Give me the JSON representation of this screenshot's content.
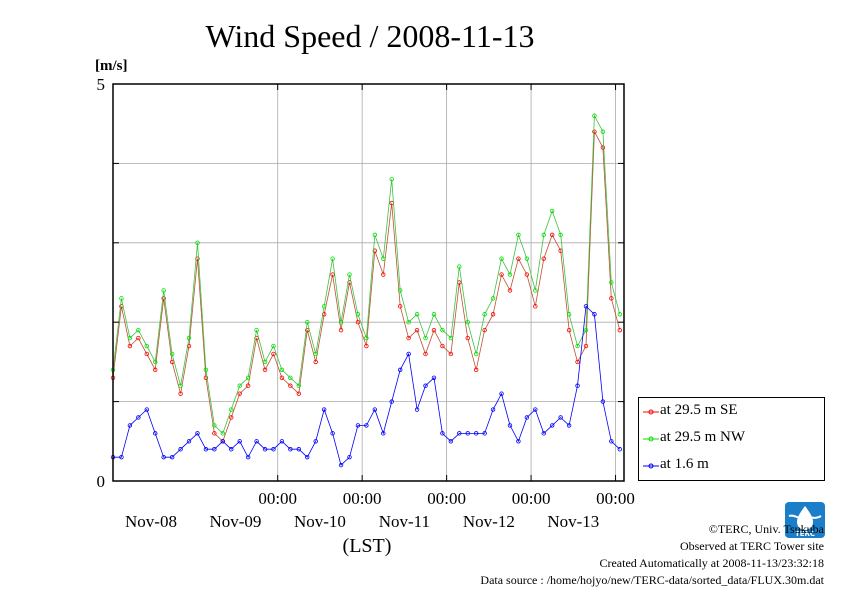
{
  "chart_data": {
    "type": "line",
    "title": "Wind Speed / 2008-11-13",
    "ylabel": "[m/s]",
    "xlabel": "(LST)",
    "ylim": [
      0,
      5
    ],
    "y_ticks": [
      "0",
      "5"
    ],
    "x_tick_time": "00:00",
    "x_date_labels": [
      "Nov-08",
      "Nov-09",
      "Nov-10",
      "Nov-11",
      "Nov-12",
      "Nov-13"
    ],
    "x_range_days": [
      -0.95,
      5.1
    ],
    "grid": true,
    "legend_position": "right",
    "series": [
      {
        "name": "at 29.5 m SE",
        "color": "#ff0000",
        "x": [
          -0.95,
          -0.85,
          -0.75,
          -0.65,
          -0.55,
          -0.45,
          -0.35,
          -0.25,
          -0.15,
          -0.05,
          0.05,
          0.15,
          0.25,
          0.35,
          0.45,
          0.55,
          0.65,
          0.75,
          0.85,
          0.95,
          1.05,
          1.15,
          1.25,
          1.35,
          1.45,
          1.55,
          1.65,
          1.75,
          1.85,
          1.95,
          2.05,
          2.15,
          2.25,
          2.35,
          2.45,
          2.55,
          2.65,
          2.75,
          2.85,
          2.95,
          3.05,
          3.15,
          3.25,
          3.35,
          3.45,
          3.55,
          3.65,
          3.75,
          3.85,
          3.95,
          4.05,
          4.15,
          4.25,
          4.35,
          4.45,
          4.55,
          4.65,
          4.75,
          4.85,
          4.95,
          5.05
        ],
        "values": [
          1.3,
          2.2,
          1.7,
          1.8,
          1.6,
          1.4,
          2.3,
          1.5,
          1.1,
          1.7,
          2.8,
          1.3,
          0.6,
          0.5,
          0.8,
          1.1,
          1.2,
          1.8,
          1.4,
          1.6,
          1.3,
          1.2,
          1.1,
          1.9,
          1.5,
          2.1,
          2.6,
          1.9,
          2.5,
          2.0,
          1.7,
          2.9,
          2.6,
          3.5,
          2.2,
          1.8,
          1.9,
          1.6,
          1.9,
          1.7,
          1.6,
          2.5,
          1.8,
          1.4,
          1.9,
          2.1,
          2.6,
          2.4,
          2.8,
          2.6,
          2.2,
          2.8,
          3.1,
          2.9,
          1.9,
          1.5,
          1.7,
          4.4,
          4.2,
          2.3,
          1.9
        ]
      },
      {
        "name": "at 29.5 m NW",
        "color": "#00e000",
        "x": [
          -0.95,
          -0.85,
          -0.75,
          -0.65,
          -0.55,
          -0.45,
          -0.35,
          -0.25,
          -0.15,
          -0.05,
          0.05,
          0.15,
          0.25,
          0.35,
          0.45,
          0.55,
          0.65,
          0.75,
          0.85,
          0.95,
          1.05,
          1.15,
          1.25,
          1.35,
          1.45,
          1.55,
          1.65,
          1.75,
          1.85,
          1.95,
          2.05,
          2.15,
          2.25,
          2.35,
          2.45,
          2.55,
          2.65,
          2.75,
          2.85,
          2.95,
          3.05,
          3.15,
          3.25,
          3.35,
          3.45,
          3.55,
          3.65,
          3.75,
          3.85,
          3.95,
          4.05,
          4.15,
          4.25,
          4.35,
          4.45,
          4.55,
          4.65,
          4.75,
          4.85,
          4.95,
          5.05
        ],
        "values": [
          1.4,
          2.3,
          1.8,
          1.9,
          1.7,
          1.5,
          2.4,
          1.6,
          1.2,
          1.8,
          3.0,
          1.4,
          0.7,
          0.6,
          0.9,
          1.2,
          1.3,
          1.9,
          1.5,
          1.7,
          1.4,
          1.3,
          1.2,
          2.0,
          1.6,
          2.2,
          2.8,
          2.0,
          2.6,
          2.1,
          1.8,
          3.1,
          2.8,
          3.8,
          2.4,
          2.0,
          2.1,
          1.8,
          2.1,
          1.9,
          1.8,
          2.7,
          2.0,
          1.6,
          2.1,
          2.3,
          2.8,
          2.6,
          3.1,
          2.8,
          2.4,
          3.1,
          3.4,
          3.1,
          2.1,
          1.7,
          1.9,
          4.6,
          4.4,
          2.5,
          2.1
        ]
      },
      {
        "name": "at 1.6 m",
        "color": "#0000ff",
        "x": [
          -0.95,
          -0.85,
          -0.75,
          -0.65,
          -0.55,
          -0.45,
          -0.35,
          -0.25,
          -0.15,
          -0.05,
          0.05,
          0.15,
          0.25,
          0.35,
          0.45,
          0.55,
          0.65,
          0.75,
          0.85,
          0.95,
          1.05,
          1.15,
          1.25,
          1.35,
          1.45,
          1.55,
          1.65,
          1.75,
          1.85,
          1.95,
          2.05,
          2.15,
          2.25,
          2.35,
          2.45,
          2.55,
          2.65,
          2.75,
          2.85,
          2.95,
          3.05,
          3.15,
          3.25,
          3.35,
          3.45,
          3.55,
          3.65,
          3.75,
          3.85,
          3.95,
          4.05,
          4.15,
          4.25,
          4.35,
          4.45,
          4.55,
          4.65,
          4.75,
          4.85,
          4.95,
          5.05
        ],
        "values": [
          0.3,
          0.3,
          0.7,
          0.8,
          0.9,
          0.6,
          0.3,
          0.3,
          0.4,
          0.5,
          0.6,
          0.4,
          0.4,
          0.5,
          0.4,
          0.5,
          0.3,
          0.5,
          0.4,
          0.4,
          0.5,
          0.4,
          0.4,
          0.3,
          0.5,
          0.9,
          0.6,
          0.2,
          0.3,
          0.7,
          0.7,
          0.9,
          0.6,
          1.0,
          1.4,
          1.6,
          0.9,
          1.2,
          1.3,
          0.6,
          0.5,
          0.6,
          0.6,
          0.6,
          0.6,
          0.9,
          1.1,
          0.7,
          0.5,
          0.8,
          0.9,
          0.6,
          0.7,
          0.8,
          0.7,
          1.2,
          2.2,
          2.1,
          1.0,
          0.5,
          0.4
        ]
      }
    ]
  },
  "footer": {
    "copyright": "©TERC, Univ. Tsukuba",
    "observed": "Observed at TERC Tower site",
    "created": "Created Automatically at 2008-11-13/23:32:18",
    "source": "Data source : /home/hojyo/new/TERC-data/sorted_data/FLUX.30m.dat"
  },
  "logo": {
    "text": "TERC",
    "color": "#1a7fc8"
  }
}
